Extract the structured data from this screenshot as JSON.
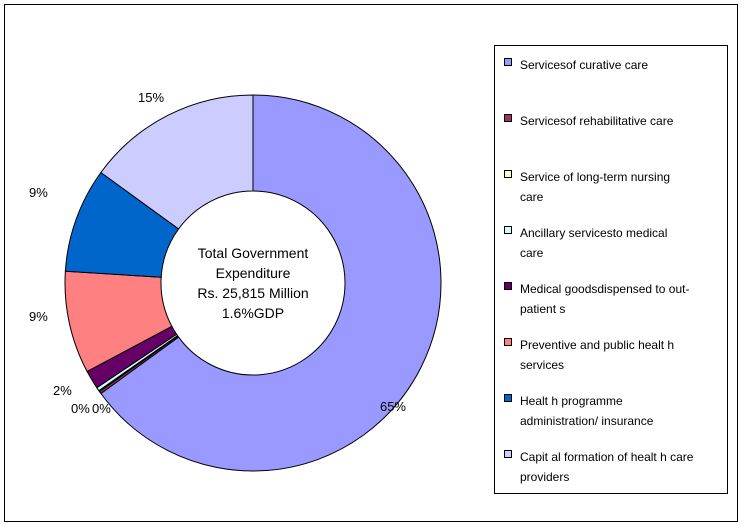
{
  "chart_data": {
    "type": "pie",
    "donut": true,
    "center_text": [
      "Total Government",
      "Expenditure",
      "Rs. 25,815 Million",
      "1.6%GDP"
    ],
    "categories": [
      "Servicesof curative care",
      "Servicesof rehabilitative care",
      "Service of long-term nursing care",
      "Ancillary servicesto medical care",
      "Medical goodsdispensed to out-patient s",
      "Preventive and public healt h services",
      "Healt h programme administration/ insurance",
      "Capit al formation of healt h care providers"
    ],
    "values": [
      65,
      0.2,
      0.1,
      0.3,
      1.6,
      8.8,
      9.0,
      15.0
    ],
    "value_labels": [
      "65%",
      "",
      "0%",
      "0%",
      "2%",
      "9%",
      "9%",
      "15%"
    ],
    "colors": [
      "#9999FF",
      "#993366",
      "#FFFFCC",
      "#CCFFFF",
      "#660066",
      "#FF8080",
      "#0066CC",
      "#CCCCFF"
    ],
    "legend_position": "right"
  }
}
